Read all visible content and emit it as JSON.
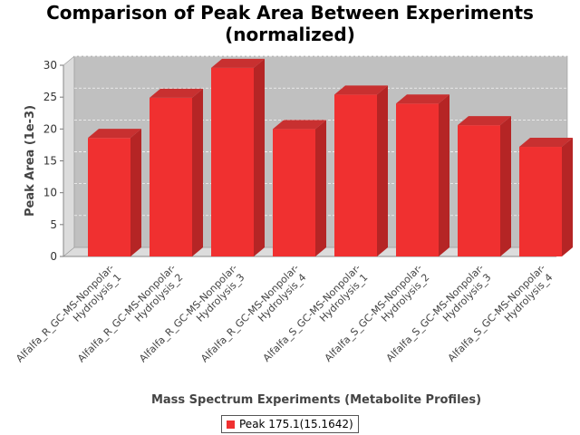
{
  "chart_data": {
    "type": "bar",
    "title": "Comparison of Peak Area Between Experiments (normalized)",
    "title_lines": [
      "Comparison of Peak Area Between Experiments",
      "(normalized)"
    ],
    "xlabel": "Mass Spectrum Experiments (Metabolite Profiles)",
    "ylabel": "Peak Area (1e-3)",
    "ylim": [
      0,
      30
    ],
    "yticks": [
      0,
      5,
      10,
      15,
      20,
      25,
      30
    ],
    "grid": true,
    "legend_position": "bottom",
    "categories": [
      [
        "Alfalfa_R_GC-MS-Nonpolar-",
        "Hydrolysis_1"
      ],
      [
        "Alfalfa_R_GC-MS-Nonpolar-",
        "Hydrolysis_2"
      ],
      [
        "Alfalfa_R_GC-MS-Nonpolar-",
        "Hydrolysis_3"
      ],
      [
        "Alfalfa_R_GC-MS-Nonpolar-",
        "Hydrolysis_4"
      ],
      [
        "Alfalfa_S_GC-MS-Nonpolar-",
        "Hydrolysis_1"
      ],
      [
        "Alfalfa_S_GC-MS-Nonpolar-",
        "Hydrolysis_2"
      ],
      [
        "Alfalfa_S_GC-MS-Nonpolar-",
        "Hydrolysis_3"
      ],
      [
        "Alfalfa_S_GC-MS-Nonpolar-",
        "Hydrolysis_4"
      ]
    ],
    "series": [
      {
        "name": "Peak 175.1(15.1642)",
        "color": "#f03030",
        "values": [
          18.6,
          24.9,
          29.6,
          20.0,
          25.4,
          24.0,
          20.6,
          17.2
        ]
      }
    ]
  }
}
